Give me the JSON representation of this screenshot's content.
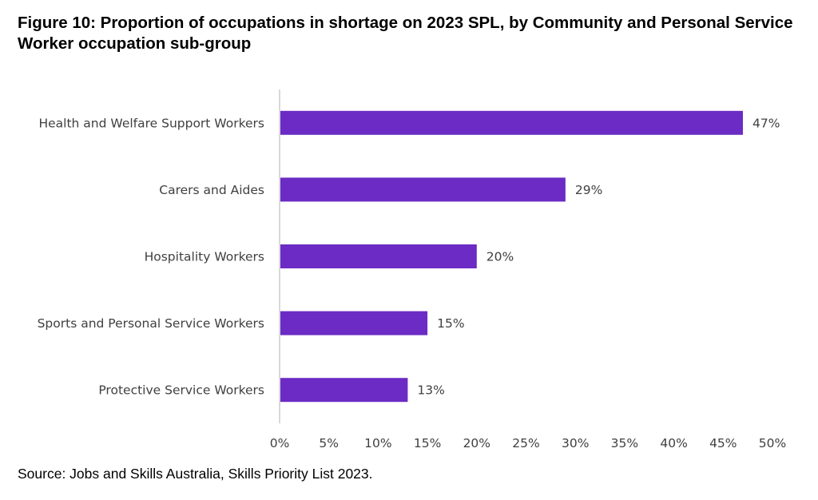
{
  "title": "Figure 10: Proportion of occupations in shortage on 2023 SPL, by Community and Personal Service Worker occupation sub-group",
  "source": "Source: Jobs and Skills Australia, Skills Priority List 2023.",
  "colors": {
    "bar": "#6B2BC4",
    "axis": "#d9d9d9",
    "text": "#404040"
  },
  "chart_data": {
    "type": "bar",
    "orientation": "horizontal",
    "categories": [
      "Health and Welfare Support Workers",
      "Carers and Aides",
      "Hospitality Workers",
      "Sports and Personal Service Workers",
      "Protective Service Workers"
    ],
    "values": [
      47,
      29,
      20,
      15,
      13
    ],
    "data_labels": [
      "47%",
      "29%",
      "20%",
      "15%",
      "13%"
    ],
    "xlim": [
      0,
      50
    ],
    "xticks": [
      0,
      5,
      10,
      15,
      20,
      25,
      30,
      35,
      40,
      45,
      50
    ],
    "xtick_labels": [
      "0%",
      "5%",
      "10%",
      "15%",
      "20%",
      "25%",
      "30%",
      "35%",
      "40%",
      "45%",
      "50%"
    ],
    "grid": false,
    "legend": "none"
  }
}
